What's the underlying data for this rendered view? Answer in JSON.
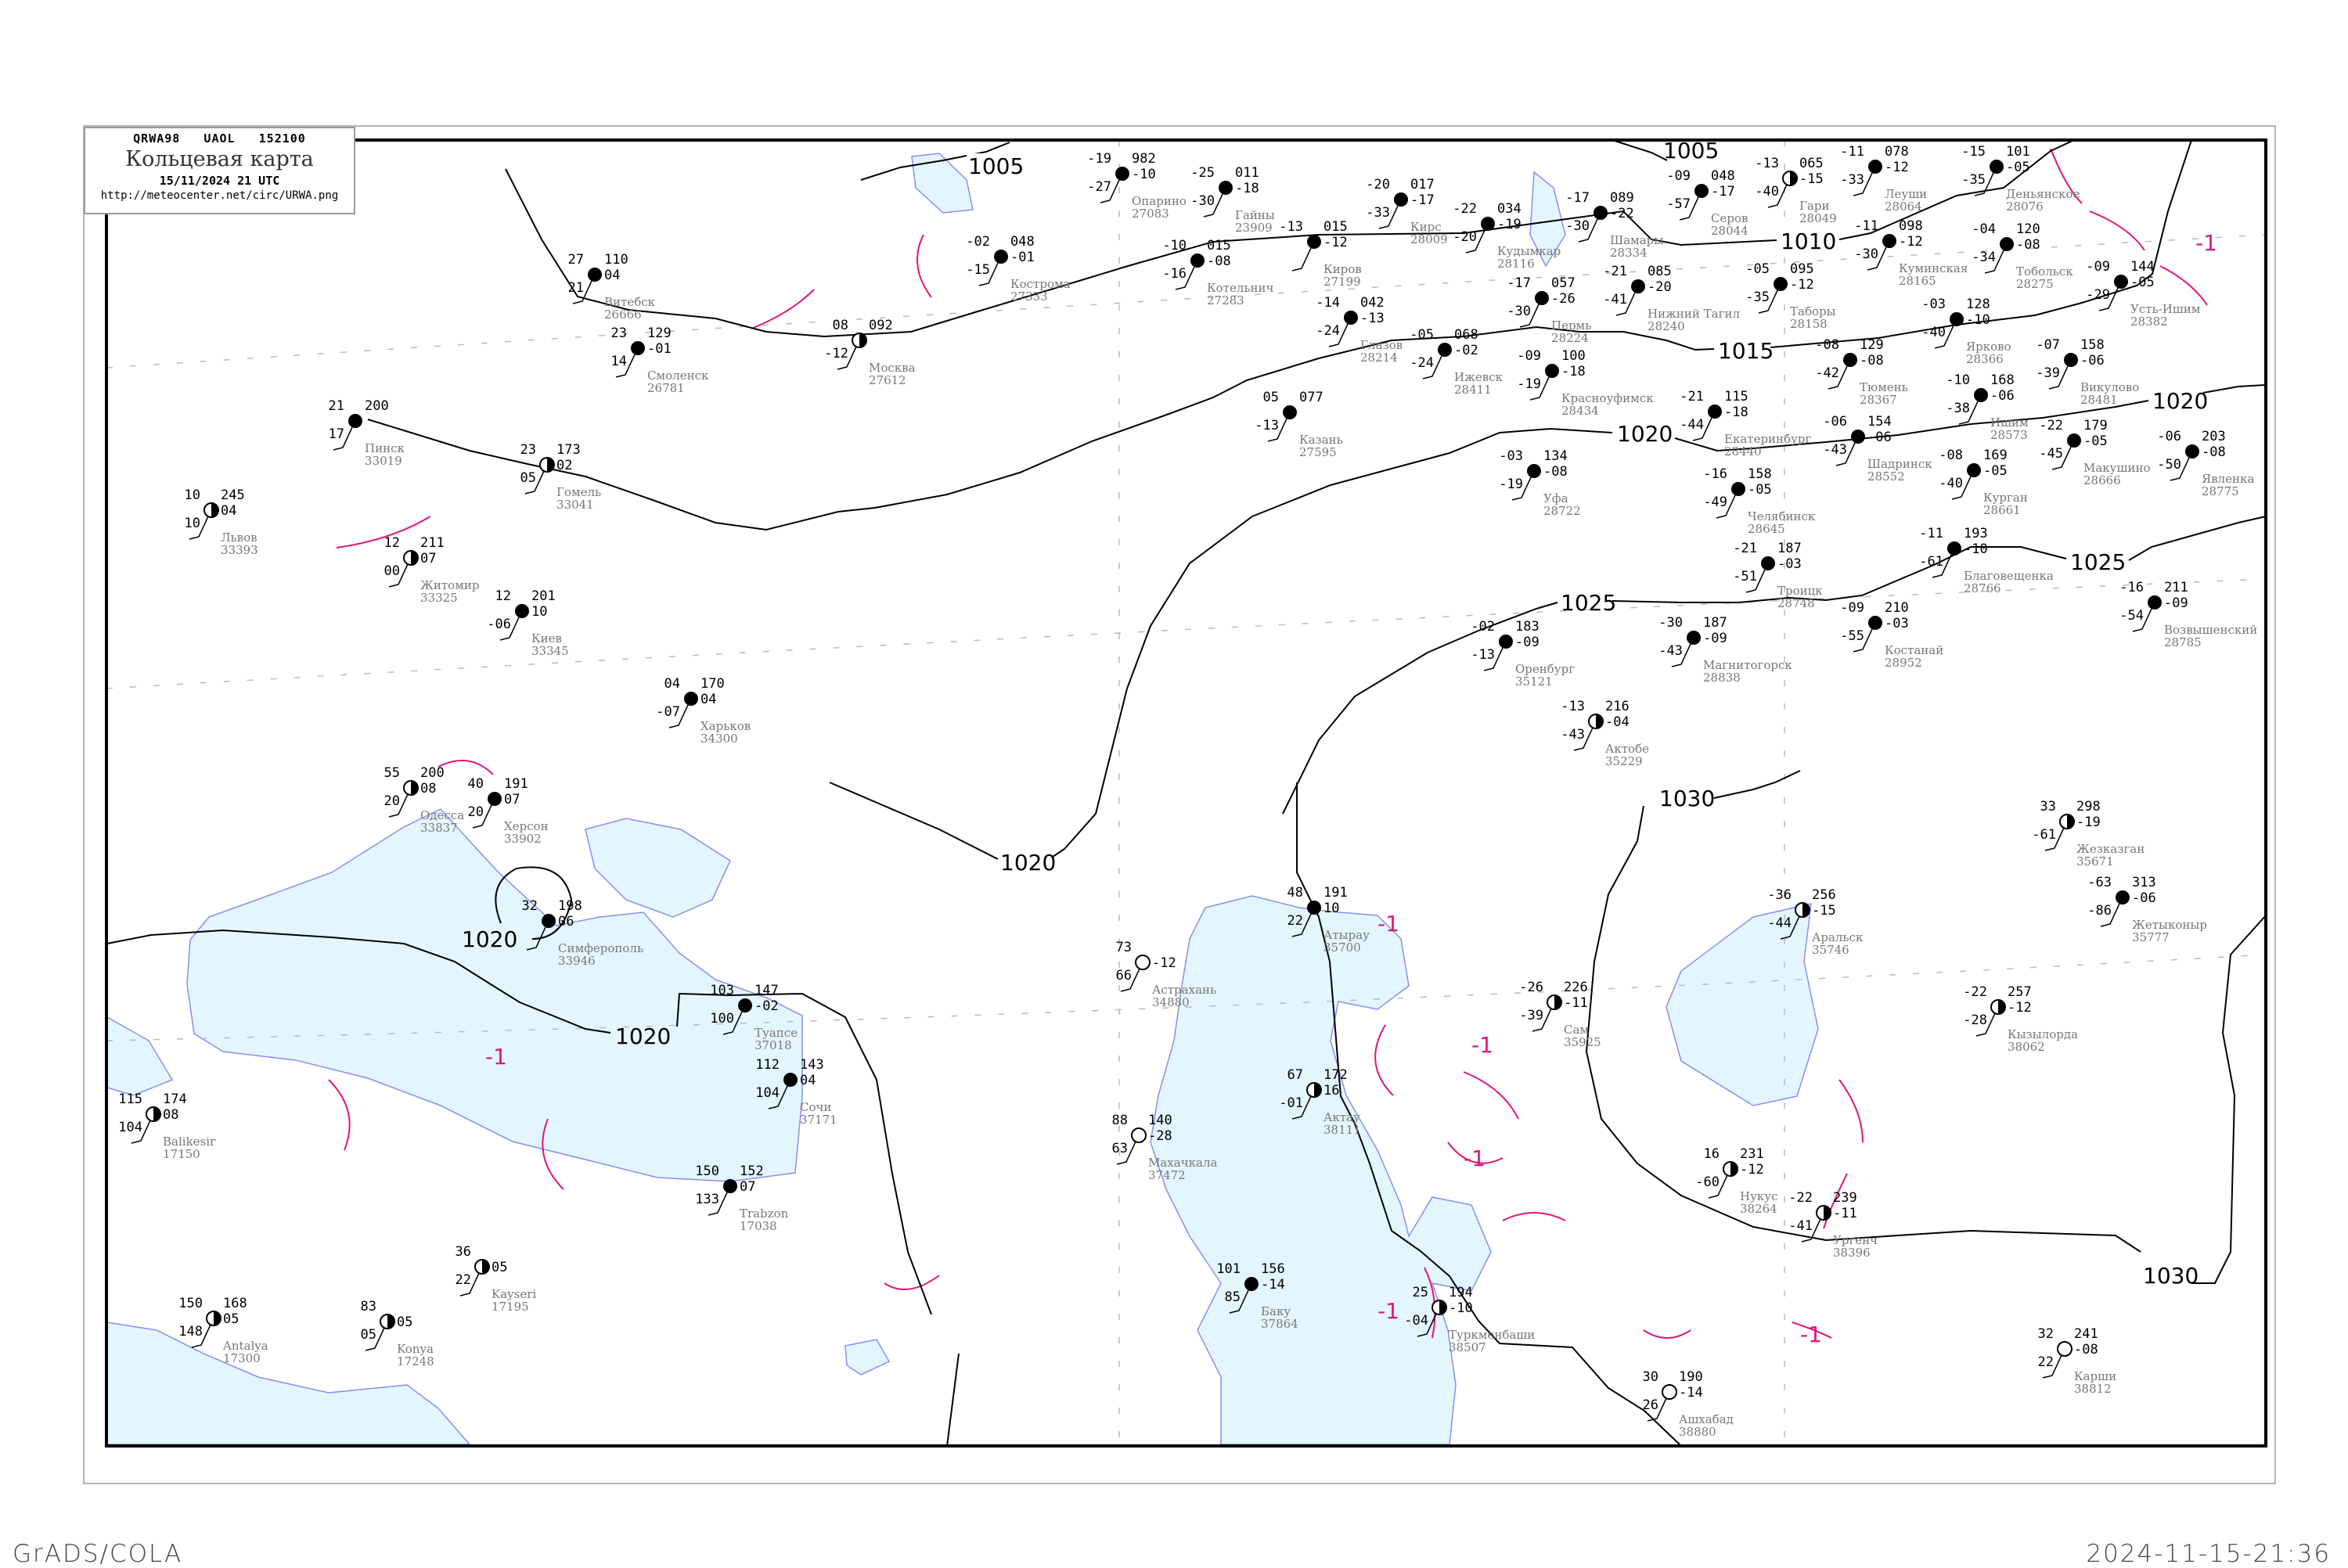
{
  "header": {
    "code": "QRWA98   UAOL   152100",
    "title": "Кольцевая карта",
    "datetime": "15/11/2024 21 UTC",
    "url": "http://meteocenter.net/circ/URWA.png"
  },
  "footer": {
    "left": "GrADS/COLA",
    "right": "2024-11-15-21:36"
  },
  "colors": {
    "isobar": "#000000",
    "isallobar": "#e0157a",
    "water": "#e3f6fd",
    "coast": "#8c8cf0",
    "snow_marker": "#3a8ee6",
    "rain_marker": "#19c42a",
    "fog_marker": "#f2f25a"
  },
  "isobars": {
    "i1005a": "1005",
    "i1005b": "1005",
    "i1010": "1010",
    "i1015": "1015",
    "i1020a": "1020",
    "i1020b": "1020",
    "i1020c": "1020",
    "i1020d": "1020",
    "i1020e": "1020",
    "i1025a": "1025",
    "i1025b": "1025",
    "i1030a": "1030",
    "i1030b": "1030"
  },
  "tendency_labels": {
    "t1": "-1",
    "t2": "-1",
    "t3": "-1",
    "t4": "-1",
    "t5": "-1",
    "t6": "-1",
    "t7": "-1"
  },
  "stations": [
    {
      "name": "Серов",
      "id": "28044",
      "temp": "-09",
      "pressure": "048",
      "dew": "-57",
      "tend": "-17",
      "cover": "full"
    },
    {
      "name": "Гари",
      "id": "28049",
      "temp": "-13",
      "pressure": "065",
      "dew": "-40",
      "tend": "-15",
      "cover": "half"
    },
    {
      "name": "Леуши",
      "id": "28064",
      "temp": "-11",
      "pressure": "078",
      "dew": "-33",
      "tend": "-12",
      "cover": "full"
    },
    {
      "name": "Деньянское",
      "id": "28076",
      "temp": "-15",
      "pressure": "101",
      "dew": "-35",
      "tend": "-05",
      "cover": "full"
    },
    {
      "name": "Куминская",
      "id": "28165",
      "temp": "-11",
      "pressure": "098",
      "dew": "-30",
      "tend": "-12",
      "cover": "full"
    },
    {
      "name": "Таборы",
      "id": "28158",
      "temp": "-05",
      "pressure": "095",
      "dew": "-35",
      "tend": "-12",
      "cover": "full"
    },
    {
      "name": "Тобольск",
      "id": "28275",
      "temp": "-04",
      "pressure": "120",
      "dew": "-34",
      "tend": "-08",
      "cover": "full"
    },
    {
      "name": "Усть-Ишим",
      "id": "28382",
      "temp": "-09",
      "pressure": "144",
      "dew": "-29",
      "tend": "-05",
      "cover": "full"
    },
    {
      "name": "Нижний Тагил",
      "id": "28240",
      "temp": "-21",
      "pressure": "085",
      "dew": "-41",
      "tend": "-20",
      "cover": "full"
    },
    {
      "name": "Ярково",
      "id": "28366",
      "temp": "-03",
      "pressure": "128",
      "dew": "-40",
      "tend": "-10",
      "cover": "full"
    },
    {
      "name": "Тюмень",
      "id": "28367",
      "temp": "-08",
      "pressure": "129",
      "dew": "-42",
      "tend": "-08",
      "cover": "full"
    },
    {
      "name": "Викулово",
      "id": "28481",
      "temp": "-07",
      "pressure": "158",
      "dew": "-39",
      "tend": "-06",
      "cover": "full"
    },
    {
      "name": "Екатеринбург",
      "id": "28440",
      "temp": "-21",
      "pressure": "115",
      "dew": "-44",
      "tend": "-18",
      "cover": "full"
    },
    {
      "name": "Ишим",
      "id": "28573",
      "temp": "-10",
      "pressure": "168",
      "dew": "-38",
      "tend": "-06",
      "cover": "full"
    },
    {
      "name": "Шадринск",
      "id": "28552",
      "temp": "-06",
      "pressure": "154",
      "dew": "-43",
      "tend": "-06",
      "cover": "full"
    },
    {
      "name": "Курган",
      "id": "28661",
      "temp": "-08",
      "pressure": "169",
      "dew": "-40",
      "tend": "-05",
      "cover": "full"
    },
    {
      "name": "Макушино",
      "id": "28666",
      "temp": "-22",
      "pressure": "179",
      "dew": "-45",
      "tend": "-05",
      "cover": "full"
    },
    {
      "name": "Челябинск",
      "id": "28645",
      "temp": "-16",
      "pressure": "158",
      "dew": "-49",
      "tend": "-05",
      "cover": "full"
    },
    {
      "name": "Благовещенка",
      "id": "28766",
      "temp": "-11",
      "pressure": "193",
      "dew": "-61",
      "tend": "-10",
      "cover": "full"
    },
    {
      "name": "Явленка",
      "id": "28775",
      "temp": "-06",
      "pressure": "203",
      "dew": "-50",
      "tend": "-08",
      "cover": "full"
    },
    {
      "name": "Возвышенский",
      "id": "28785",
      "temp": "-16",
      "pressure": "211",
      "dew": "-54",
      "tend": "-09",
      "cover": "full"
    },
    {
      "name": "Троицк",
      "id": "28748",
      "temp": "-21",
      "pressure": "187",
      "dew": "-51",
      "tend": "-03",
      "cover": "full"
    },
    {
      "name": "Киров",
      "id": "27199",
      "temp": "-13",
      "pressure": "015",
      "dew": "",
      "tend": "-12",
      "cover": "full"
    },
    {
      "name": "Котельнич",
      "id": "27283",
      "temp": "-10",
      "pressure": "015",
      "dew": "-16",
      "tend": "-08",
      "cover": "full"
    },
    {
      "name": "Кудымкар",
      "id": "28116",
      "temp": "-22",
      "pressure": "034",
      "dew": "-20",
      "tend": "-19",
      "cover": "full"
    },
    {
      "name": "Пермь",
      "id": "28224",
      "temp": "-17",
      "pressure": "057",
      "dew": "-30",
      "tend": "-26",
      "cover": "full"
    },
    {
      "name": "Ижевск",
      "id": "28411",
      "temp": "-05",
      "pressure": "068",
      "dew": "-24",
      "tend": "-02",
      "cover": "full"
    },
    {
      "name": "Казань",
      "id": "27595",
      "temp": "05",
      "pressure": "077",
      "dew": "-13",
      "tend": "",
      "cover": "full"
    },
    {
      "name": "Уфа",
      "id": "28722",
      "temp": "-03",
      "pressure": "134",
      "dew": "-19",
      "tend": "-08",
      "cover": "full"
    },
    {
      "name": "Оренбург",
      "id": "35121",
      "temp": "-02",
      "pressure": "183",
      "dew": "-13",
      "tend": "-09",
      "cover": "full"
    },
    {
      "name": "Магнитогорск",
      "id": "28838",
      "temp": "-30",
      "pressure": "187",
      "dew": "-43",
      "tend": "-09",
      "cover": "full"
    },
    {
      "name": "Актобе",
      "id": "35229",
      "temp": "-13",
      "pressure": "216",
      "dew": "-43",
      "tend": "-04",
      "cover": "half"
    },
    {
      "name": "Костанай",
      "id": "28952",
      "temp": "-09",
      "pressure": "210",
      "dew": "-55",
      "tend": "-03",
      "cover": "full"
    },
    {
      "name": "Красноуфимск",
      "id": "28434",
      "temp": "-09",
      "pressure": "100",
      "dew": "-19",
      "tend": "-18",
      "cover": "full"
    },
    {
      "name": "Шамары",
      "id": "28334",
      "temp": "-17",
      "pressure": "089",
      "dew": "-30",
      "tend": "-22",
      "cover": "full"
    },
    {
      "name": "Глазов",
      "id": "28214",
      "temp": "-14",
      "pressure": "042",
      "dew": "-24",
      "tend": "-13",
      "cover": "full"
    },
    {
      "name": "Гайны",
      "id": "23909",
      "temp": "-25",
      "pressure": "011",
      "dew": "-30",
      "tend": "-18",
      "cover": "full"
    },
    {
      "name": "Опарино",
      "id": "27083",
      "temp": "-19",
      "pressure": "982",
      "dew": "-27",
      "tend": "-10",
      "cover": "full"
    },
    {
      "name": "Кирс",
      "id": "28009",
      "temp": "-20",
      "pressure": "017",
      "dew": "-33",
      "tend": "-17",
      "cover": "full"
    },
    {
      "name": "Кострома",
      "id": "27333",
      "temp": "-02",
      "pressure": "048",
      "dew": "-15",
      "tend": "-01",
      "cover": "full"
    },
    {
      "name": "Москва",
      "id": "27612",
      "temp": "08",
      "pressure": "092",
      "dew": "-12",
      "tend": "",
      "cover": "half"
    },
    {
      "name": "Смоленск",
      "id": "26781",
      "temp": "23",
      "pressure": "129",
      "dew": "14",
      "tend": "-01",
      "cover": "full"
    },
    {
      "name": "Витебск",
      "id": "26666",
      "temp": "27",
      "pressure": "110",
      "dew": "21",
      "tend": "04",
      "cover": "full"
    },
    {
      "name": "Пинск",
      "id": "33019",
      "temp": "21",
      "pressure": "200",
      "dew": "17",
      "tend": "",
      "cover": "full"
    },
    {
      "name": "Гомель",
      "id": "33041",
      "temp": "23",
      "pressure": "173",
      "dew": "05",
      "tend": "02",
      "cover": "half"
    },
    {
      "name": "Львов",
      "id": "33393",
      "temp": "10",
      "pressure": "245",
      "dew": "10",
      "tend": "04",
      "cover": "half"
    },
    {
      "name": "Житомир",
      "id": "33325",
      "temp": "12",
      "pressure": "211",
      "dew": "00",
      "tend": "07",
      "cover": "half"
    },
    {
      "name": "Киев",
      "id": "33345",
      "temp": "12",
      "pressure": "201",
      "dew": "-06",
      "tend": "10",
      "cover": "full"
    },
    {
      "name": "Харьков",
      "id": "34300",
      "temp": "04",
      "pressure": "170",
      "dew": "-07",
      "tend": "04",
      "cover": "full"
    },
    {
      "name": "Одесса",
      "id": "33837",
      "temp": "55",
      "pressure": "200",
      "dew": "20",
      "tend": "08",
      "cover": "half"
    },
    {
      "name": "Херсон",
      "id": "33902",
      "temp": "40",
      "pressure": "191",
      "dew": "20",
      "tend": "07",
      "cover": "full"
    },
    {
      "name": "Симферополь",
      "id": "33946",
      "temp": "32",
      "pressure": "198",
      "dew": "",
      "tend": "06",
      "cover": "full"
    },
    {
      "name": "Туапсе",
      "id": "37018",
      "temp": "103",
      "pressure": "147",
      "dew": "100",
      "tend": "-02",
      "cover": "full"
    },
    {
      "name": "Сочи",
      "id": "37171",
      "temp": "112",
      "pressure": "143",
      "dew": "104",
      "tend": "04",
      "cover": "full"
    },
    {
      "name": "Trabzon",
      "id": "17038",
      "temp": "150",
      "pressure": "152",
      "dew": "133",
      "tend": "07",
      "cover": "full"
    },
    {
      "name": "Antalya",
      "id": "17300",
      "temp": "150",
      "pressure": "168",
      "dew": "148",
      "tend": "05",
      "cover": "half"
    },
    {
      "name": "Balikesir",
      "id": "17150",
      "temp": "115",
      "pressure": "174",
      "dew": "104",
      "tend": "08",
      "cover": "half"
    },
    {
      "name": "Konya",
      "id": "17248",
      "temp": "83",
      "pressure": "",
      "dew": "05",
      "tend": "05",
      "cover": "half"
    },
    {
      "name": "Kayseri",
      "id": "17195",
      "temp": "36",
      "pressure": "",
      "dew": "22",
      "tend": "05",
      "cover": "half"
    },
    {
      "name": "Астрахань",
      "id": "34880",
      "temp": "73",
      "pressure": "",
      "dew": "66",
      "tend": "-12",
      "cover": "clear"
    },
    {
      "name": "Махачкала",
      "id": "37472",
      "temp": "88",
      "pressure": "140",
      "dew": "63",
      "tend": "-28",
      "cover": "clear"
    },
    {
      "name": "Атырау",
      "id": "35700",
      "temp": "48",
      "pressure": "191",
      "dew": "22",
      "tend": "10",
      "cover": "full"
    },
    {
      "name": "Аральск",
      "id": "35746",
      "temp": "-36",
      "pressure": "256",
      "dew": "-44",
      "tend": "-15",
      "cover": "half"
    },
    {
      "name": "Кызылорда",
      "id": "38062",
      "temp": "-22",
      "pressure": "257",
      "dew": "-28",
      "tend": "-12",
      "cover": "half"
    },
    {
      "name": "Нукус",
      "id": "38264",
      "temp": "16",
      "pressure": "231",
      "dew": "-60",
      "tend": "-12",
      "cover": "half"
    },
    {
      "name": "Ургенч",
      "id": "38396",
      "temp": "-22",
      "pressure": "239",
      "dew": "-41",
      "tend": "-11",
      "cover": "half"
    },
    {
      "name": "Актау",
      "id": "38111",
      "temp": "67",
      "pressure": "172",
      "dew": "-01",
      "tend": "16",
      "cover": "half"
    },
    {
      "name": "Баку",
      "id": "37864",
      "temp": "101",
      "pressure": "156",
      "dew": "85",
      "tend": "-14",
      "cover": "full"
    },
    {
      "name": "Туркменбаши",
      "id": "38507",
      "temp": "25",
      "pressure": "194",
      "dew": "-04",
      "tend": "-10",
      "cover": "half"
    },
    {
      "name": "Ашхабад",
      "id": "38880",
      "temp": "30",
      "pressure": "190",
      "dew": "26",
      "tend": "-14",
      "cover": "clear"
    },
    {
      "name": "Карши",
      "id": "38812",
      "temp": "32",
      "pressure": "241",
      "dew": "22",
      "tend": "-08",
      "cover": "clear"
    },
    {
      "name": "Жезказган",
      "id": "35671",
      "temp": "33",
      "pressure": "298",
      "dew": "-61",
      "tend": "-19",
      "cover": "half"
    },
    {
      "name": "Жетыконыр",
      "id": "35777",
      "temp": "-63",
      "pressure": "313",
      "dew": "-86",
      "tend": "-06",
      "cover": "full"
    },
    {
      "name": "Сам",
      "id": "35925",
      "temp": "-26",
      "pressure": "226",
      "dew": "-39",
      "tend": "-11",
      "cover": "half"
    }
  ]
}
